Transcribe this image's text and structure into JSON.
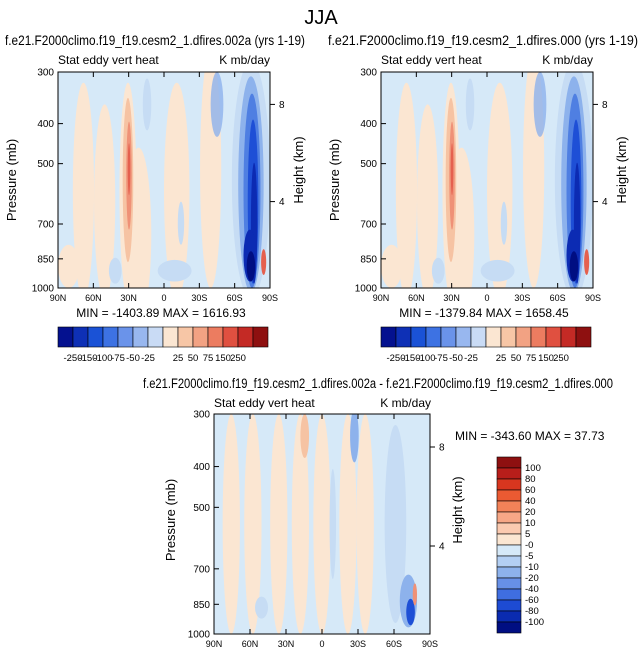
{
  "main_title": "JJA",
  "stat_label": "Stat eddy vert heat",
  "units_label": "K mb/day",
  "y_axis_label": "Pressure (mb)",
  "y2_axis_label": "Height (km)",
  "x_ticks": [
    "90N",
    "60N",
    "30N",
    "0",
    "30S",
    "60S",
    "90S"
  ],
  "y_ticks": [
    "300",
    "400",
    "500",
    "700",
    "850",
    "1000"
  ],
  "height_ticks": [
    "8",
    "4"
  ],
  "colors": {
    "bg": "#d6e9f8",
    "warm": [
      "#fbe6d2",
      "#f6c3a3",
      "#ef9177",
      "#e5604e",
      "#c8312d",
      "#8e1010"
    ],
    "cool": [
      "#c6dcf4",
      "#8db2ec",
      "#4f7fe2",
      "#1e4fd6",
      "#0c2bb3",
      "#000e82"
    ]
  },
  "chart_data": [
    {
      "type": "heatmap",
      "title": "f.e21.F2000climo.f19_f19.cesm2_1.dfires.002a (yrs 1-19)",
      "min_max_text": "MIN = -1403.89   MAX = 1616.93",
      "xlabel": "",
      "ylabel": "Pressure (mb)",
      "y2label": "Height (km)",
      "colorbar_labels": [
        "-250",
        "-150",
        "-100",
        "-75",
        "-50",
        "-25",
        "25",
        "50",
        "75",
        "150",
        "250"
      ],
      "colorbar_colors": [
        "#04118f",
        "#0e30b6",
        "#1a52d6",
        "#3d72e3",
        "#6a93ea",
        "#98b7ef",
        "#c9dbf5",
        "#fbe6d2",
        "#f7c6a6",
        "#f2a283",
        "#ec7c60",
        "#e05040",
        "#c42a25",
        "#8e1010"
      ]
    },
    {
      "type": "heatmap",
      "title": "f.e21.F2000climo.f19_f19.cesm2_1.dfires.000 (yrs 1-19)",
      "min_max_text": "MIN = -1379.84   MAX = 1658.45",
      "xlabel": "",
      "ylabel": "Pressure (mb)",
      "y2label": "Height (km)",
      "colorbar_labels": [
        "-250",
        "-150",
        "-100",
        "-75",
        "-50",
        "-25",
        "25",
        "50",
        "75",
        "150",
        "250"
      ]
    },
    {
      "type": "heatmap",
      "title": "f.e21.F2000climo.f19_f19.cesm2_1.dfires.002a - f.e21.F2000climo.f19_f19.cesm2_1.dfires.000",
      "min_max_text": "MIN = -343.60  MAX =  37.73",
      "xlabel": "",
      "ylabel": "Pressure (mb)",
      "y2label": "Height (km)",
      "colorbar_labels": [
        "100",
        "80",
        "60",
        "40",
        "20",
        "10",
        "5",
        "-0",
        "-5",
        "-10",
        "-20",
        "-40",
        "-60",
        "-80",
        "-100"
      ],
      "colorbar_colors": [
        "#8e1010",
        "#b81e1a",
        "#d8361f",
        "#eb5a32",
        "#f38258",
        "#f7a786",
        "#fbcab0",
        "#fbe6d2",
        "#d6e9f8",
        "#b3cff3",
        "#8db2ec",
        "#6790e6",
        "#3f6ee0",
        "#1d4bd3",
        "#0a2bb0",
        "#000e82"
      ]
    }
  ]
}
